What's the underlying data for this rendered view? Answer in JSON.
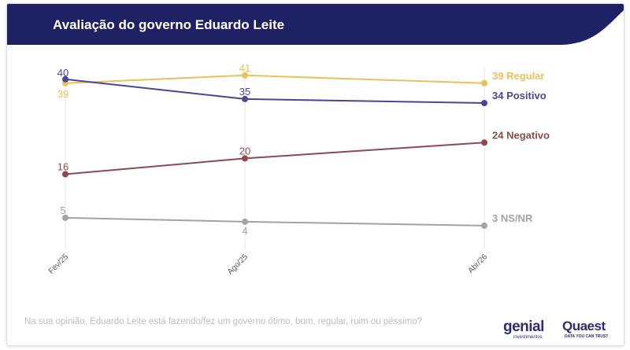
{
  "header": {
    "title": "Avaliação do governo Eduardo Leite",
    "banner_color": "#1f2165"
  },
  "chart_data": {
    "type": "line",
    "title": "Avaliação do governo Eduardo Leite",
    "xlabel": "",
    "ylabel": "",
    "x": [
      "Fev/25",
      "Ago/25",
      "Abr/26"
    ],
    "ylim": [
      0,
      45
    ],
    "grid": "vertical",
    "legend": "end-labels",
    "series": [
      {
        "name": "Regular",
        "values": [
          39,
          41,
          39
        ],
        "color": "#e8c15a",
        "end_label": "39 Regular"
      },
      {
        "name": "Positivo",
        "values": [
          40,
          35,
          34
        ],
        "color": "#4b4692",
        "end_label": "34 Positivo"
      },
      {
        "name": "Negativo",
        "values": [
          16,
          20,
          24
        ],
        "color": "#8a4a4e",
        "end_label": "24 Negativo"
      },
      {
        "name": "NS/NR",
        "values": [
          5,
          4,
          3
        ],
        "color": "#a3a3a3",
        "end_label": "3 NS/NR"
      }
    ]
  },
  "footer": {
    "question": "Na sua opinião, Eduardo Leite está fazendo/fez um governo ótimo, bom, regular, ruim ou péssimo?",
    "logo_genial": "genial",
    "logo_genial_sub": "investimentos",
    "logo_quaest": "Quaest",
    "logo_quaest_sub": "DATA YOU CAN TRUST"
  }
}
